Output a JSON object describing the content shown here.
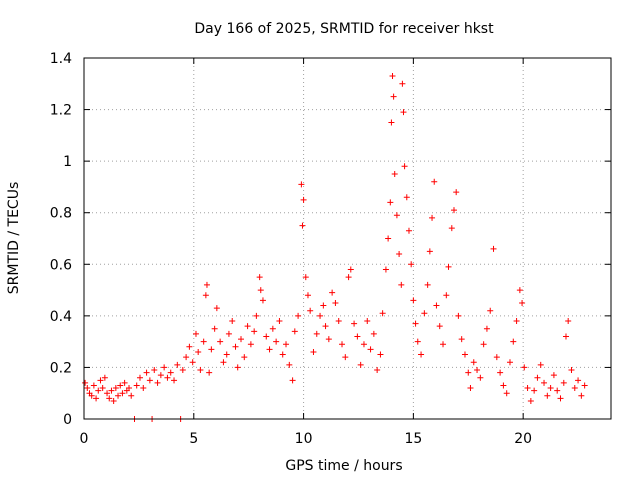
{
  "chart_data": {
    "type": "scatter",
    "title": "Day 166 of 2025, SRMTID for receiver hkst",
    "xlabel": "GPS time / hours",
    "ylabel": "SRMTID / TECUs",
    "xlim": [
      0,
      24
    ],
    "ylim": [
      0,
      1.4
    ],
    "xticks": [
      0,
      5,
      10,
      15,
      20
    ],
    "xtick_labels": [
      "0",
      "5",
      "10",
      "15",
      "20"
    ],
    "yticks": [
      0,
      0.2,
      0.4,
      0.6,
      0.8,
      1,
      1.2,
      1.4
    ],
    "ytick_labels": [
      "0",
      "0.2",
      "0.4",
      "0.6",
      "0.8",
      "1",
      "1.2",
      "1.4"
    ],
    "grid": true,
    "marker": "+",
    "color": "#ff0000",
    "series": [
      {
        "name": "SRMTID",
        "points": [
          [
            0.05,
            0.14
          ],
          [
            0.15,
            0.12
          ],
          [
            0.25,
            0.1
          ],
          [
            0.35,
            0.09
          ],
          [
            0.45,
            0.13
          ],
          [
            0.55,
            0.08
          ],
          [
            0.65,
            0.11
          ],
          [
            0.75,
            0.15
          ],
          [
            0.85,
            0.12
          ],
          [
            0.95,
            0.16
          ],
          [
            1.05,
            0.1
          ],
          [
            1.15,
            0.08
          ],
          [
            1.25,
            0.11
          ],
          [
            1.35,
            0.07
          ],
          [
            1.45,
            0.12
          ],
          [
            1.55,
            0.09
          ],
          [
            1.65,
            0.13
          ],
          [
            1.75,
            0.1
          ],
          [
            1.85,
            0.14
          ],
          [
            1.95,
            0.11
          ],
          [
            2.05,
            0.12
          ],
          [
            2.15,
            0.09
          ],
          [
            2.3,
            0.0
          ],
          [
            2.4,
            0.13
          ],
          [
            2.55,
            0.16
          ],
          [
            2.7,
            0.12
          ],
          [
            2.85,
            0.18
          ],
          [
            3.0,
            0.15
          ],
          [
            3.1,
            0.0
          ],
          [
            3.2,
            0.19
          ],
          [
            3.35,
            0.14
          ],
          [
            3.5,
            0.17
          ],
          [
            3.65,
            0.2
          ],
          [
            3.8,
            0.16
          ],
          [
            3.95,
            0.18
          ],
          [
            4.1,
            0.15
          ],
          [
            4.25,
            0.21
          ],
          [
            4.4,
            0.0
          ],
          [
            4.5,
            0.19
          ],
          [
            4.65,
            0.24
          ],
          [
            4.8,
            0.28
          ],
          [
            4.95,
            0.22
          ],
          [
            5.1,
            0.33
          ],
          [
            5.2,
            0.26
          ],
          [
            5.3,
            0.19
          ],
          [
            5.45,
            0.3
          ],
          [
            5.55,
            0.48
          ],
          [
            5.6,
            0.52
          ],
          [
            5.7,
            0.18
          ],
          [
            5.8,
            0.27
          ],
          [
            5.95,
            0.35
          ],
          [
            6.05,
            0.43
          ],
          [
            6.2,
            0.3
          ],
          [
            6.35,
            0.22
          ],
          [
            6.5,
            0.25
          ],
          [
            6.6,
            0.33
          ],
          [
            6.75,
            0.38
          ],
          [
            6.9,
            0.28
          ],
          [
            7.0,
            0.2
          ],
          [
            7.15,
            0.31
          ],
          [
            7.3,
            0.24
          ],
          [
            7.45,
            0.36
          ],
          [
            7.6,
            0.29
          ],
          [
            7.75,
            0.34
          ],
          [
            7.85,
            0.4
          ],
          [
            8.0,
            0.55
          ],
          [
            8.05,
            0.5
          ],
          [
            8.15,
            0.46
          ],
          [
            8.3,
            0.32
          ],
          [
            8.45,
            0.27
          ],
          [
            8.6,
            0.35
          ],
          [
            8.75,
            0.3
          ],
          [
            8.9,
            0.38
          ],
          [
            9.05,
            0.25
          ],
          [
            9.2,
            0.29
          ],
          [
            9.35,
            0.21
          ],
          [
            9.5,
            0.15
          ],
          [
            9.6,
            0.34
          ],
          [
            9.75,
            0.4
          ],
          [
            9.9,
            0.91
          ],
          [
            9.95,
            0.75
          ],
          [
            10.0,
            0.85
          ],
          [
            10.1,
            0.55
          ],
          [
            10.2,
            0.48
          ],
          [
            10.3,
            0.42
          ],
          [
            10.45,
            0.26
          ],
          [
            10.6,
            0.33
          ],
          [
            10.75,
            0.4
          ],
          [
            10.9,
            0.44
          ],
          [
            11.0,
            0.36
          ],
          [
            11.15,
            0.31
          ],
          [
            11.3,
            0.49
          ],
          [
            11.45,
            0.45
          ],
          [
            11.6,
            0.38
          ],
          [
            11.75,
            0.29
          ],
          [
            11.9,
            0.24
          ],
          [
            12.05,
            0.55
          ],
          [
            12.15,
            0.58
          ],
          [
            12.3,
            0.37
          ],
          [
            12.45,
            0.32
          ],
          [
            12.6,
            0.21
          ],
          [
            12.75,
            0.29
          ],
          [
            12.9,
            0.38
          ],
          [
            13.05,
            0.27
          ],
          [
            13.2,
            0.33
          ],
          [
            13.35,
            0.19
          ],
          [
            13.5,
            0.25
          ],
          [
            13.6,
            0.41
          ],
          [
            13.75,
            0.58
          ],
          [
            13.85,
            0.7
          ],
          [
            13.95,
            0.84
          ],
          [
            14.0,
            1.15
          ],
          [
            14.05,
            1.33
          ],
          [
            14.1,
            1.25
          ],
          [
            14.15,
            0.95
          ],
          [
            14.25,
            0.79
          ],
          [
            14.35,
            0.64
          ],
          [
            14.45,
            0.52
          ],
          [
            14.5,
            1.3
          ],
          [
            14.55,
            1.19
          ],
          [
            14.6,
            0.98
          ],
          [
            14.7,
            0.86
          ],
          [
            14.8,
            0.73
          ],
          [
            14.9,
            0.6
          ],
          [
            15.0,
            0.46
          ],
          [
            15.1,
            0.37
          ],
          [
            15.2,
            0.3
          ],
          [
            15.35,
            0.25
          ],
          [
            15.5,
            0.41
          ],
          [
            15.65,
            0.52
          ],
          [
            15.75,
            0.65
          ],
          [
            15.85,
            0.78
          ],
          [
            15.95,
            0.92
          ],
          [
            16.05,
            0.44
          ],
          [
            16.2,
            0.36
          ],
          [
            16.35,
            0.29
          ],
          [
            16.5,
            0.48
          ],
          [
            16.6,
            0.59
          ],
          [
            16.75,
            0.74
          ],
          [
            16.85,
            0.81
          ],
          [
            16.95,
            0.88
          ],
          [
            17.05,
            0.4
          ],
          [
            17.2,
            0.31
          ],
          [
            17.35,
            0.25
          ],
          [
            17.5,
            0.18
          ],
          [
            17.6,
            0.12
          ],
          [
            17.75,
            0.22
          ],
          [
            17.9,
            0.19
          ],
          [
            18.05,
            0.16
          ],
          [
            18.2,
            0.29
          ],
          [
            18.35,
            0.35
          ],
          [
            18.5,
            0.42
          ],
          [
            18.65,
            0.66
          ],
          [
            18.8,
            0.24
          ],
          [
            18.95,
            0.18
          ],
          [
            19.1,
            0.13
          ],
          [
            19.25,
            0.1
          ],
          [
            19.4,
            0.22
          ],
          [
            19.55,
            0.3
          ],
          [
            19.7,
            0.38
          ],
          [
            19.85,
            0.5
          ],
          [
            19.95,
            0.45
          ],
          [
            20.05,
            0.2
          ],
          [
            20.2,
            0.12
          ],
          [
            20.35,
            0.07
          ],
          [
            20.5,
            0.11
          ],
          [
            20.65,
            0.16
          ],
          [
            20.8,
            0.21
          ],
          [
            20.95,
            0.14
          ],
          [
            21.1,
            0.09
          ],
          [
            21.25,
            0.12
          ],
          [
            21.4,
            0.17
          ],
          [
            21.55,
            0.11
          ],
          [
            21.7,
            0.08
          ],
          [
            21.85,
            0.14
          ],
          [
            21.95,
            0.32
          ],
          [
            22.05,
            0.38
          ],
          [
            22.2,
            0.19
          ],
          [
            22.35,
            0.12
          ],
          [
            22.5,
            0.15
          ],
          [
            22.65,
            0.09
          ],
          [
            22.8,
            0.13
          ]
        ]
      }
    ]
  }
}
